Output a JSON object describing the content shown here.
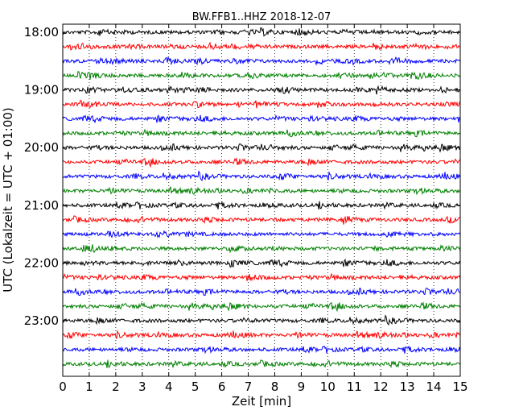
{
  "chart_data": {
    "type": "line",
    "title": "BW.FFB1..HHZ 2018-12-07",
    "xlabel": "Zeit  [min]",
    "ylabel": "UTC (Lokalzeit = UTC + 01:00)",
    "xlim": [
      0,
      15
    ],
    "x_ticks": [
      "0",
      "1",
      "2",
      "3",
      "4",
      "5",
      "6",
      "7",
      "8",
      "9",
      "10",
      "11",
      "12",
      "13",
      "14",
      "15"
    ],
    "y_ticks": [
      "18:00",
      "19:00",
      "20:00",
      "21:00",
      "22:00",
      "23:00"
    ],
    "grid": "vertical dotted",
    "trace_start_minutes_of_hour": [
      0,
      15,
      30,
      45
    ],
    "trace_start_hours": [
      "18",
      "19",
      "20",
      "21",
      "22",
      "23"
    ],
    "trace_count": 24,
    "trace_colors": [
      "#000000",
      "#ff0000",
      "#0000ff",
      "#008000"
    ],
    "station": "BW.FFB1..HHZ",
    "date": "2018-12-07"
  }
}
